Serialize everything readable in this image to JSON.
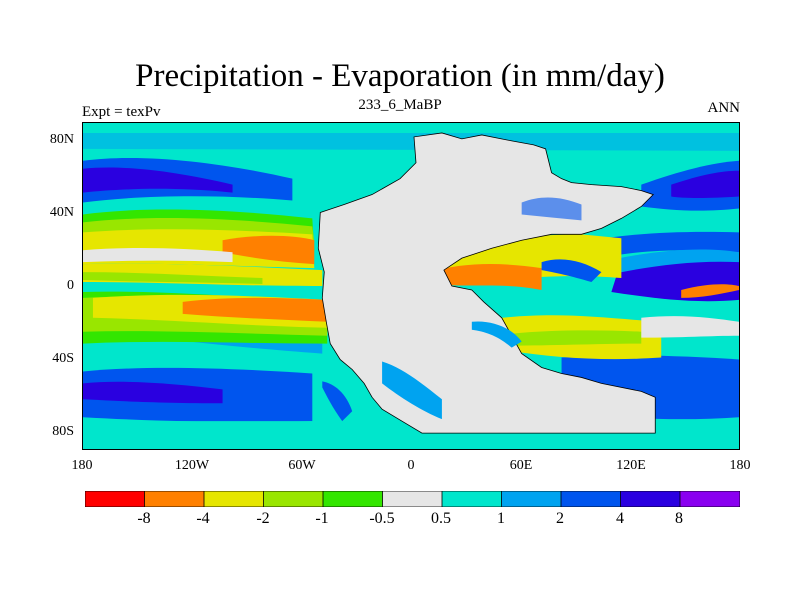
{
  "title": "Precipitation - Evaporation (in mm/day)",
  "subtitle_center": "233_6_MaBP",
  "subtitle_left": "Expt = texPv",
  "subtitle_right": "ANN",
  "axes": {
    "y_ticks": [
      "80N",
      "40N",
      "0",
      "40S",
      "80S"
    ],
    "x_ticks": [
      "180",
      "120W",
      "60W",
      "0",
      "60E",
      "120E",
      "180"
    ]
  },
  "colorbar": {
    "colors": [
      "#ff0000",
      "#ff8000",
      "#e6e600",
      "#99e600",
      "#33e600",
      "#e6e6e6",
      "#00e6cc",
      "#00a3f0",
      "#0055ee",
      "#2a00e0",
      "#8a00f0"
    ],
    "labels": [
      "-8",
      "-4",
      "-2",
      "-1",
      "-0.5",
      "0.5",
      "1",
      "2",
      "4",
      "8"
    ]
  }
}
